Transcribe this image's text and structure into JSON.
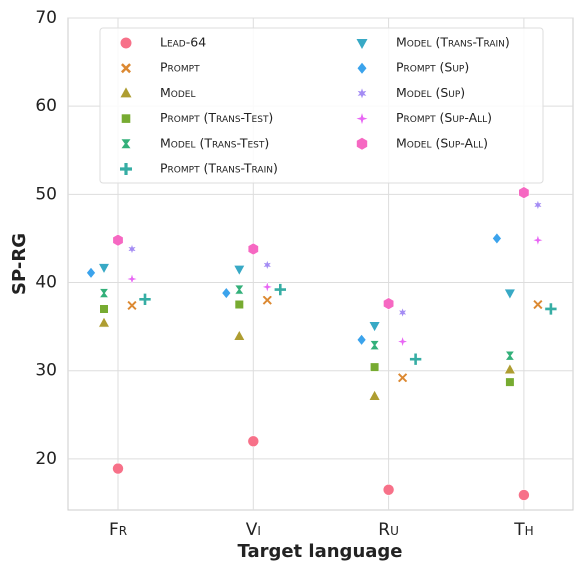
{
  "chart_data": {
    "type": "scatter",
    "x_label": "Target language",
    "y_label": "SP-RG",
    "categories": [
      "Fr",
      "Vi",
      "Ru",
      "Th"
    ],
    "ylim": [
      14.2,
      70
    ],
    "yticks": [
      20,
      30,
      40,
      50,
      60,
      70
    ],
    "grid": true,
    "series": [
      {
        "name": "Lead-64",
        "color": "#f77189",
        "marker": "circle",
        "values": [
          18.9,
          22.0,
          16.5,
          15.9
        ]
      },
      {
        "name": "Prompt",
        "color": "#dc8932",
        "marker": "x",
        "values": [
          37.4,
          38.0,
          29.2,
          37.5
        ]
      },
      {
        "name": "Model",
        "color": "#ae9d31",
        "marker": "triangle-up",
        "values": [
          35.4,
          33.9,
          27.1,
          30.1
        ]
      },
      {
        "name": "Prompt (Trans-Test)",
        "color": "#77ab31",
        "marker": "square",
        "values": [
          37.0,
          37.5,
          30.4,
          28.7
        ]
      },
      {
        "name": "Model (Trans-Test)",
        "color": "#33b07a",
        "marker": "bowtie",
        "values": [
          38.8,
          39.2,
          32.9,
          31.7
        ]
      },
      {
        "name": "Prompt (Trans-Train)",
        "color": "#36ada4",
        "marker": "plus",
        "values": [
          38.1,
          39.2,
          31.3,
          37.0
        ]
      },
      {
        "name": "Model (Trans-Train)",
        "color": "#38a9c5",
        "marker": "triangle-down",
        "values": [
          41.7,
          41.5,
          35.1,
          38.8
        ]
      },
      {
        "name": "Prompt (Sup)",
        "color": "#3ba3ec",
        "marker": "diamond",
        "values": [
          41.1,
          38.8,
          33.5,
          45.0
        ]
      },
      {
        "name": "Model (Sup)",
        "color": "#a48cf4",
        "marker": "star6",
        "values": [
          43.8,
          42.0,
          36.6,
          48.8
        ]
      },
      {
        "name": "Prompt (Sup-All)",
        "color": "#e866f4",
        "marker": "star4",
        "values": [
          40.4,
          39.5,
          33.3,
          44.8
        ]
      },
      {
        "name": "Model (Sup-All)",
        "color": "#f668c2",
        "marker": "hexagon",
        "values": [
          44.8,
          43.8,
          37.6,
          50.2
        ]
      }
    ]
  }
}
